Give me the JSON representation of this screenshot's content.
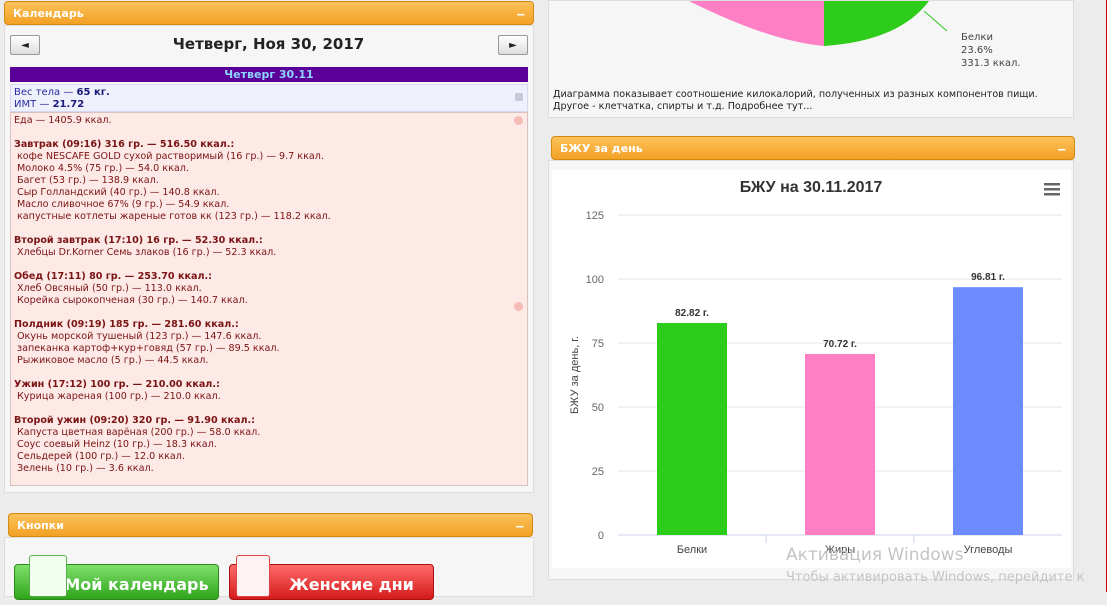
{
  "calendar_panel": {
    "title": "Календарь",
    "collapse": "‒",
    "prev": "◄",
    "next": "►",
    "date_title": "Четверг, Ноя 30, 2017",
    "day_header": "Четверг 30.11",
    "weight_label": "Вес тела — ",
    "weight_value": "65 кг.",
    "bmi_label": "ИМТ — ",
    "bmi_value": "21.72",
    "food_total": "Еда — 1405.9 ккал.",
    "meals": [
      {
        "title": "Завтрак (09:16) 316 гр. — 516.50 ккал.:",
        "items": [
          "кофе NESCAFE GOLD сухой растворимый (16 гр.) — 9.7 ккал.",
          "Молоко 4.5% (75 гр.) — 54.0 ккал.",
          "Багет (53 гр.) — 138.9 ккал.",
          "Сыр Голландский (40 гр.) — 140.8 ккал.",
          "Масло сливочное 67% (9 гр.) — 54.9 ккал.",
          "капустные котлеты жареные готов кк (123 гр.) — 118.2 ккал."
        ]
      },
      {
        "title": "Второй завтрак (17:10) 16 гр. — 52.30 ккал.:",
        "items": [
          "Хлебцы Dr.Korner Семь злаков (16 гр.) — 52.3 ккал."
        ]
      },
      {
        "title": "Обед (17:11) 80 гр. — 253.70 ккал.:",
        "items": [
          "Хлеб Овсяный (50 гр.) — 113.0 ккал.",
          "Корейка сырокопченая (30 гр.) — 140.7 ккал."
        ]
      },
      {
        "title": "Полдник (09:19) 185 гр. — 281.60 ккал.:",
        "items": [
          "Окунь морской тушеный (123 гр.) — 147.6 ккал.",
          "запеканка картоф+кур+говяд (57 гр.) — 89.5 ккал.",
          "Рыжиковое масло (5 гр.) — 44.5 ккал."
        ]
      },
      {
        "title": "Ужин (17:12) 100 гр. — 210.00 ккал.:",
        "items": [
          "Курица жареная (100 гр.) — 210.0 ккал."
        ]
      },
      {
        "title": "Второй ужин (09:20) 320 гр. — 91.90 ккал.:",
        "items": [
          "Капуста цветная варёная (200 гр.) — 58.0 ккал.",
          "Соус соевый Heinz (10 гр.) — 18.3 ккал.",
          "Сельдерей (100 гр.) — 12.0 ккал.",
          "Зелень (10 гр.) — 3.6 ккал."
        ]
      }
    ]
  },
  "buttons_panel": {
    "title": "Кнопки",
    "collapse": "‒",
    "my_calendar": "Мой календарь",
    "womens_days": "Женские дни"
  },
  "pie_panel": {
    "legend_name": "Белки",
    "legend_pct": "23.6%",
    "legend_kcal": "331.3 ккал.",
    "caption_line1": "Диаграмма показывает соотношение килокалорий, полученных из разных компонентов пищи.",
    "caption_line2": "Другое - клетчатка, спирты и т.д. Подробнее тут..."
  },
  "bju_panel": {
    "title": "БЖУ за день",
    "collapse": "‒"
  },
  "chart_data": {
    "type": "bar",
    "title": "БЖУ на 30.11.2017",
    "ylabel": "БЖУ за день, г.",
    "xlabel": "",
    "categories": [
      "Белки",
      "Жиры",
      "Углеводы"
    ],
    "values": [
      82.82,
      70.72,
      96.81
    ],
    "data_labels": [
      "82.82 г.",
      "70.72 г.",
      "96.81 г."
    ],
    "colors": [
      "#2ecc1a",
      "#ff7fc5",
      "#6b8bff"
    ],
    "ylim": [
      0,
      125
    ],
    "yticks": [
      "0",
      "25",
      "50",
      "75",
      "100",
      "125"
    ],
    "grid": true,
    "menu_icon": "hamburger-menu-icon"
  },
  "watermark": {
    "line1": "Активация Windows",
    "line2": "Чтобы активировать Windows, перейдите к"
  }
}
